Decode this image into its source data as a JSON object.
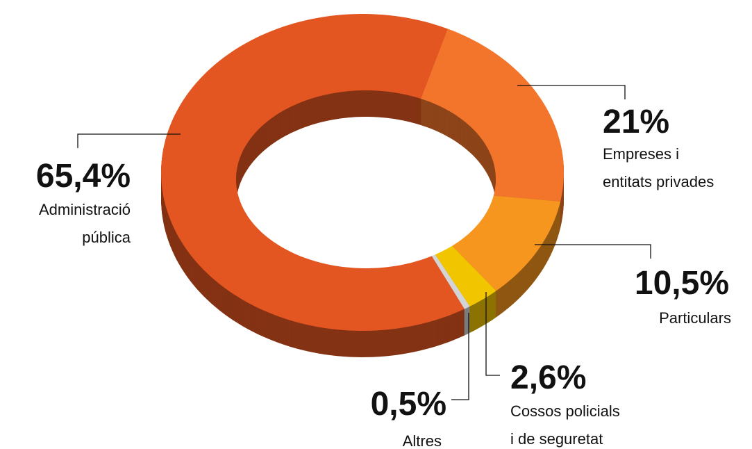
{
  "chart_data": {
    "type": "pie",
    "donut": true,
    "categories": [
      "Administració\npública",
      "Empreses i\nentitats privades",
      "Particulars",
      "Cossos policials\ni de seguretat",
      "Altres"
    ],
    "values": [
      65.4,
      21,
      10.5,
      2.6,
      0.5
    ],
    "value_labels": [
      "65,4%",
      "21%",
      "10,5%",
      "2,6%",
      "0,5%"
    ],
    "colors": [
      "#e35622",
      "#f2752b",
      "#f7961f",
      "#f1c500",
      "#d4d4d4"
    ]
  }
}
